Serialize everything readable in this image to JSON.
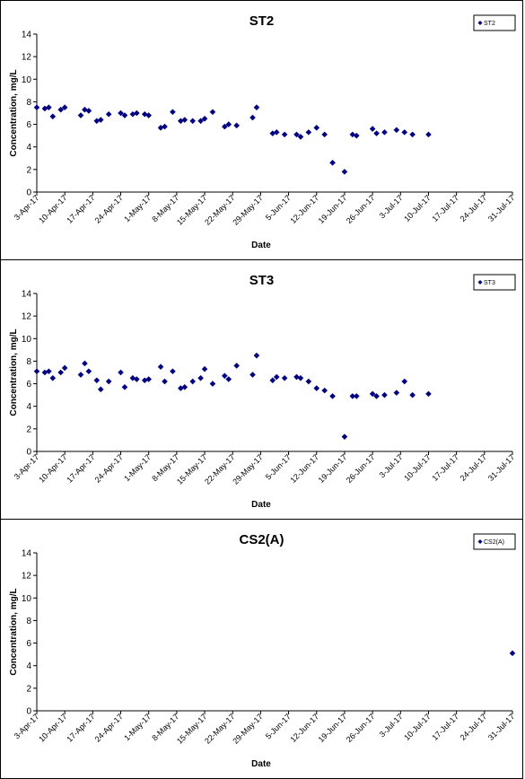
{
  "chart_data": [
    {
      "type": "scatter",
      "title": "ST2",
      "xlabel": "Date",
      "ylabel": "Concentration, mg/L",
      "ylim": [
        0,
        14
      ],
      "yticks": [
        0,
        2,
        4,
        6,
        8,
        10,
        12,
        14
      ],
      "xticks": [
        "3-Apr-17",
        "10-Apr-17",
        "17-Apr-17",
        "24-Apr-17",
        "1-May-17",
        "8-May-17",
        "15-May-17",
        "22-May-17",
        "29-May-17",
        "5-Jun-17",
        "12-Jun-17",
        "19-Jun-17",
        "26-Jun-17",
        "3-Jul-17",
        "10-Jul-17",
        "17-Jul-17",
        "24-Jul-17",
        "31-Jul-17"
      ],
      "xlim": [
        "3-Apr-17",
        "31-Jul-17"
      ],
      "legend": "top-right",
      "marker_color": "#000080",
      "series": [
        {
          "name": "ST2",
          "points": [
            [
              "3-Apr-17",
              7.5
            ],
            [
              "5-Apr-17",
              7.4
            ],
            [
              "6-Apr-17",
              7.5
            ],
            [
              "7-Apr-17",
              6.7
            ],
            [
              "9-Apr-17",
              7.3
            ],
            [
              "10-Apr-17",
              7.5
            ],
            [
              "14-Apr-17",
              6.8
            ],
            [
              "15-Apr-17",
              7.3
            ],
            [
              "16-Apr-17",
              7.2
            ],
            [
              "18-Apr-17",
              6.3
            ],
            [
              "19-Apr-17",
              6.4
            ],
            [
              "21-Apr-17",
              6.9
            ],
            [
              "24-Apr-17",
              7.0
            ],
            [
              "25-Apr-17",
              6.8
            ],
            [
              "27-Apr-17",
              6.9
            ],
            [
              "28-Apr-17",
              7.0
            ],
            [
              "30-Apr-17",
              6.9
            ],
            [
              "1-May-17",
              6.8
            ],
            [
              "4-May-17",
              5.7
            ],
            [
              "5-May-17",
              5.8
            ],
            [
              "7-May-17",
              7.1
            ],
            [
              "9-May-17",
              6.3
            ],
            [
              "10-May-17",
              6.4
            ],
            [
              "12-May-17",
              6.3
            ],
            [
              "14-May-17",
              6.3
            ],
            [
              "15-May-17",
              6.5
            ],
            [
              "17-May-17",
              7.1
            ],
            [
              "20-May-17",
              5.8
            ],
            [
              "21-May-17",
              6.0
            ],
            [
              "23-May-17",
              5.9
            ],
            [
              "27-May-17",
              6.6
            ],
            [
              "28-May-17",
              7.5
            ],
            [
              "1-Jun-17",
              5.2
            ],
            [
              "2-Jun-17",
              5.3
            ],
            [
              "4-Jun-17",
              5.1
            ],
            [
              "7-Jun-17",
              5.1
            ],
            [
              "8-Jun-17",
              4.9
            ],
            [
              "10-Jun-17",
              5.3
            ],
            [
              "12-Jun-17",
              5.7
            ],
            [
              "14-Jun-17",
              5.1
            ],
            [
              "16-Jun-17",
              2.6
            ],
            [
              "19-Jun-17",
              1.8
            ],
            [
              "21-Jun-17",
              5.1
            ],
            [
              "22-Jun-17",
              5.0
            ],
            [
              "26-Jun-17",
              5.6
            ],
            [
              "27-Jun-17",
              5.2
            ],
            [
              "29-Jun-17",
              5.3
            ],
            [
              "2-Jul-17",
              5.5
            ],
            [
              "4-Jul-17",
              5.3
            ],
            [
              "6-Jul-17",
              5.1
            ],
            [
              "10-Jul-17",
              5.1
            ]
          ]
        }
      ]
    },
    {
      "type": "scatter",
      "title": "ST3",
      "xlabel": "Date",
      "ylabel": "Concentration, mg/L",
      "ylim": [
        0,
        14
      ],
      "yticks": [
        0,
        2,
        4,
        6,
        8,
        10,
        12,
        14
      ],
      "xticks": [
        "3-Apr-17",
        "10-Apr-17",
        "17-Apr-17",
        "24-Apr-17",
        "1-May-17",
        "8-May-17",
        "15-May-17",
        "22-May-17",
        "29-May-17",
        "5-Jun-17",
        "12-Jun-17",
        "19-Jun-17",
        "26-Jun-17",
        "3-Jul-17",
        "10-Jul-17",
        "17-Jul-17",
        "24-Jul-17",
        "31-Jul-17"
      ],
      "xlim": [
        "3-Apr-17",
        "31-Jul-17"
      ],
      "legend": "top-right",
      "marker_color": "#000080",
      "series": [
        {
          "name": "ST3",
          "points": [
            [
              "3-Apr-17",
              7.1
            ],
            [
              "5-Apr-17",
              7.0
            ],
            [
              "6-Apr-17",
              7.1
            ],
            [
              "7-Apr-17",
              6.5
            ],
            [
              "9-Apr-17",
              7.0
            ],
            [
              "10-Apr-17",
              7.4
            ],
            [
              "14-Apr-17",
              6.8
            ],
            [
              "15-Apr-17",
              7.8
            ],
            [
              "16-Apr-17",
              7.1
            ],
            [
              "18-Apr-17",
              6.3
            ],
            [
              "19-Apr-17",
              5.5
            ],
            [
              "21-Apr-17",
              6.2
            ],
            [
              "24-Apr-17",
              7.0
            ],
            [
              "25-Apr-17",
              5.7
            ],
            [
              "27-Apr-17",
              6.5
            ],
            [
              "28-Apr-17",
              6.4
            ],
            [
              "30-Apr-17",
              6.3
            ],
            [
              "1-May-17",
              6.4
            ],
            [
              "4-May-17",
              7.5
            ],
            [
              "5-May-17",
              6.2
            ],
            [
              "7-May-17",
              7.1
            ],
            [
              "9-May-17",
              5.6
            ],
            [
              "10-May-17",
              5.7
            ],
            [
              "12-May-17",
              6.2
            ],
            [
              "14-May-17",
              6.5
            ],
            [
              "15-May-17",
              7.3
            ],
            [
              "17-May-17",
              6.0
            ],
            [
              "20-May-17",
              6.7
            ],
            [
              "21-May-17",
              6.4
            ],
            [
              "23-May-17",
              7.6
            ],
            [
              "27-May-17",
              6.8
            ],
            [
              "28-May-17",
              8.5
            ],
            [
              "1-Jun-17",
              6.3
            ],
            [
              "2-Jun-17",
              6.6
            ],
            [
              "4-Jun-17",
              6.5
            ],
            [
              "7-Jun-17",
              6.6
            ],
            [
              "8-Jun-17",
              6.5
            ],
            [
              "10-Jun-17",
              6.2
            ],
            [
              "12-Jun-17",
              5.6
            ],
            [
              "14-Jun-17",
              5.4
            ],
            [
              "16-Jun-17",
              4.9
            ],
            [
              "19-Jun-17",
              1.3
            ],
            [
              "21-Jun-17",
              4.9
            ],
            [
              "22-Jun-17",
              4.9
            ],
            [
              "26-Jun-17",
              5.1
            ],
            [
              "27-Jun-17",
              4.9
            ],
            [
              "29-Jun-17",
              5.0
            ],
            [
              "2-Jul-17",
              5.2
            ],
            [
              "4-Jul-17",
              6.2
            ],
            [
              "6-Jul-17",
              5.0
            ],
            [
              "10-Jul-17",
              5.1
            ]
          ]
        }
      ]
    },
    {
      "type": "scatter",
      "title": "CS2(A)",
      "xlabel": "Date",
      "ylabel": "Concentration, mg/L",
      "ylim": [
        0,
        14
      ],
      "yticks": [
        0,
        2,
        4,
        6,
        8,
        10,
        12,
        14
      ],
      "xticks": [
        "3-Apr-17",
        "10-Apr-17",
        "17-Apr-17",
        "24-Apr-17",
        "1-May-17",
        "8-May-17",
        "15-May-17",
        "22-May-17",
        "29-May-17",
        "5-Jun-17",
        "12-Jun-17",
        "19-Jun-17",
        "26-Jun-17",
        "3-Jul-17",
        "10-Jul-17",
        "17-Jul-17",
        "24-Jul-17",
        "31-Jul-17"
      ],
      "xlim": [
        "3-Apr-17",
        "31-Jul-17"
      ],
      "legend": "top-right",
      "marker_color": "#000080",
      "series": [
        {
          "name": "CS2(A)",
          "points": [
            [
              "31-Jul-17",
              5.1
            ]
          ]
        }
      ]
    }
  ]
}
